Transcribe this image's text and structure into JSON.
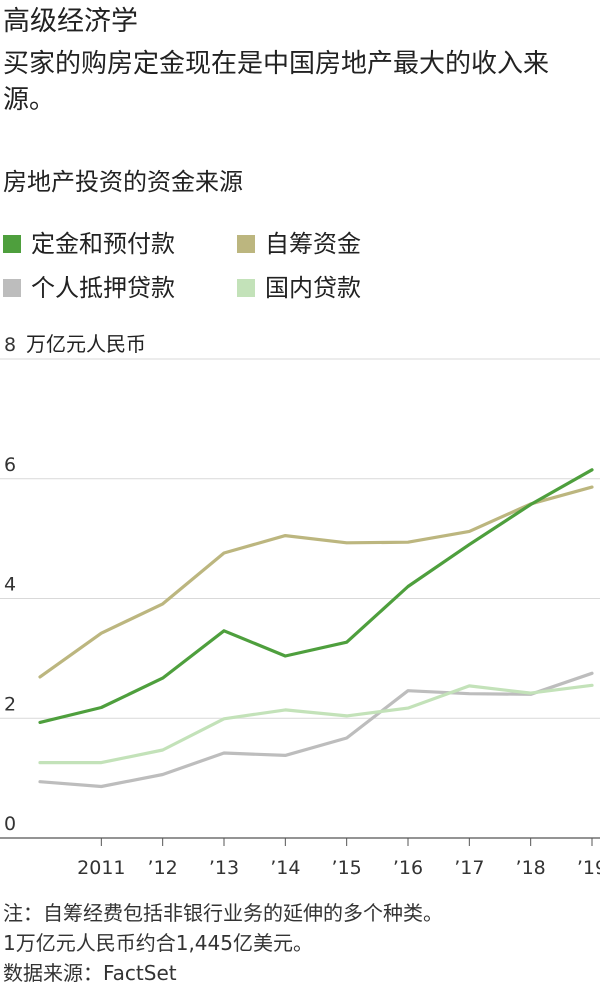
{
  "header": {
    "kicker": "高级经济学",
    "headline": "买家的购房定金现在是中国房地产最大的收入来源。",
    "subtitle": "房地产投资的资金来源"
  },
  "legend": [
    {
      "label": "定金和预付款",
      "color": "#4e9f3d"
    },
    {
      "label": "自筹资金",
      "color": "#bcb67f"
    },
    {
      "label": "个人抵押贷款",
      "color": "#bdbdbd"
    },
    {
      "label": "国内贷款",
      "color": "#c3e2b9"
    }
  ],
  "notes": [
    "注：自筹经费包括非银行业务的延伸的多个种类。",
    "1万亿元人民币约合1,445亿美元。",
    "数据来源：FactSet"
  ],
  "chart_data": {
    "type": "line",
    "ylabel": "万亿元人民币",
    "ylim": [
      0,
      8
    ],
    "yticks": [
      0,
      2,
      4,
      6,
      8
    ],
    "ytick_labels": [
      "0",
      "2",
      "4",
      "6",
      "8"
    ],
    "top_tick_unit": "万亿元人民币",
    "x": [
      2010,
      2011,
      2012,
      2013,
      2014,
      2015,
      2016,
      2017,
      2018,
      2019
    ],
    "xlim": [
      2010,
      2019
    ],
    "xticks": [
      2011,
      2012,
      2013,
      2014,
      2015,
      2016,
      2017,
      2018,
      2019
    ],
    "xtick_labels": [
      "2011",
      "’12",
      "’13",
      "’14",
      "’15",
      "’16",
      "’17",
      "’18",
      "’19"
    ],
    "grid": true,
    "series": [
      {
        "name": "定金和预付款",
        "color": "#4e9f3d",
        "values": [
          1.93,
          2.18,
          2.67,
          3.46,
          3.04,
          3.27,
          4.2,
          4.9,
          5.57,
          6.15
        ]
      },
      {
        "name": "自筹资金",
        "color": "#bcb67f",
        "values": [
          2.69,
          3.42,
          3.91,
          4.76,
          5.05,
          4.93,
          4.94,
          5.12,
          5.58,
          5.86
        ]
      },
      {
        "name": "个人抵押贷款",
        "color": "#bdbdbd",
        "values": [
          0.94,
          0.86,
          1.06,
          1.42,
          1.38,
          1.67,
          2.46,
          2.41,
          2.4,
          2.75
        ]
      },
      {
        "name": "国内贷款",
        "color": "#c3e2b9",
        "values": [
          1.26,
          1.26,
          1.47,
          1.99,
          2.14,
          2.04,
          2.17,
          2.54,
          2.42,
          2.55
        ]
      }
    ]
  }
}
